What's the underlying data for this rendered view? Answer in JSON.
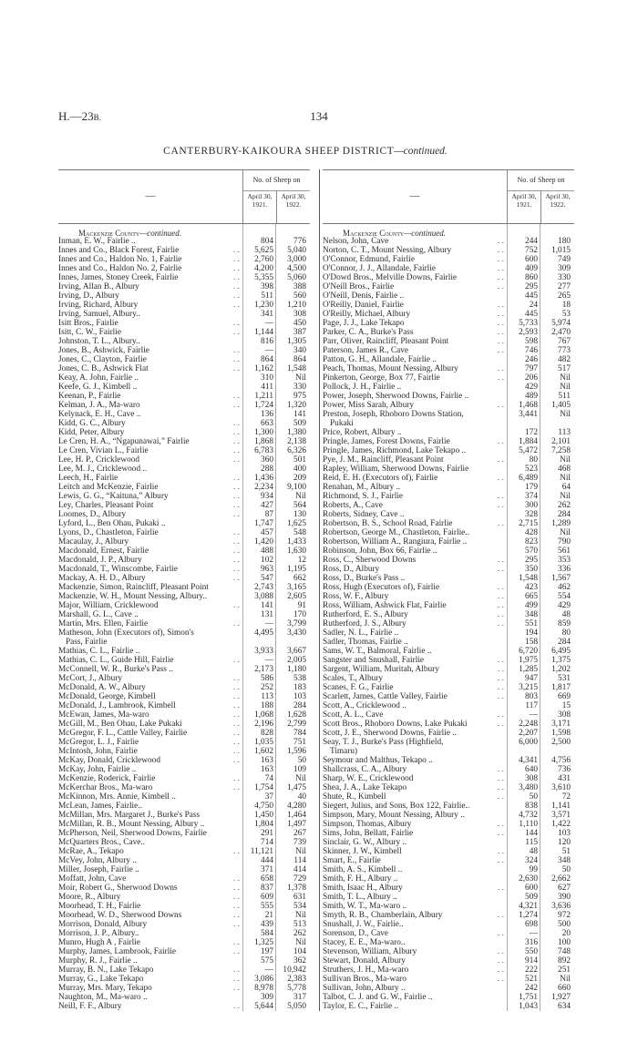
{
  "header": {
    "doc_ref_main": "H.—23",
    "doc_ref_suffix": "B.",
    "page_number": "134"
  },
  "title": {
    "main": "CANTERBURY-KAIKOURA SHEEP DISTRICT",
    "suffix": "—continued."
  },
  "table_header": {
    "dash": "—",
    "group": "No. of Sheep on",
    "col1": "April 30, 1921.",
    "col2": "April 30, 1922."
  },
  "section": {
    "name": "Mackenzie County",
    "suffix": "—continued."
  },
  "left_rows": [
    {
      "name": "Inman, E. W., Fairlie ..",
      "a": "804",
      "b": "776"
    },
    {
      "name": "Innes and Co., Black Forest, Fairlie",
      "a": "5,625",
      "b": "5,040"
    },
    {
      "name": "Innes and Co., Haldon No. 1, Fairlie",
      "a": "2,760",
      "b": "3,000"
    },
    {
      "name": "Innes and Co., Haldon No. 2, Fairlie",
      "a": "4,200",
      "b": "4,500"
    },
    {
      "name": "Innes, James, Stoney Creek, Fairlie",
      "a": "5,355",
      "b": "5,060"
    },
    {
      "name": "Irving, Allan B., Albury",
      "a": "398",
      "b": "388"
    },
    {
      "name": "Irving, D., Albury",
      "a": "511",
      "b": "560"
    },
    {
      "name": "Irving, Richard, Albury",
      "a": "1,230",
      "b": "1,210"
    },
    {
      "name": "Irving, Samuel, Albury..",
      "a": "341",
      "b": "308"
    },
    {
      "name": "Isitt Bros., Fairlie",
      "a": "—",
      "b": "450"
    },
    {
      "name": "Isitt, C. W., Fairlie",
      "a": "1,144",
      "b": "387"
    },
    {
      "name": "Johnston, T. L., Albury..",
      "a": "816",
      "b": "1,305"
    },
    {
      "name": "Jones, B., Ashwick, Fairlie",
      "a": "—",
      "b": "340"
    },
    {
      "name": "Jones, C., Clayton, Fairlie",
      "a": "864",
      "b": "864"
    },
    {
      "name": "Jones, C. B., Ashwick Flat",
      "a": "1,162",
      "b": "1,548"
    },
    {
      "name": "Keay, A. John, Fairlie ..",
      "a": "310",
      "b": "Nil"
    },
    {
      "name": "Keefe, G. J., Kimbell ..",
      "a": "411",
      "b": "330"
    },
    {
      "name": "Keenan, P., Fairlie",
      "a": "1,211",
      "b": "975"
    },
    {
      "name": "Kelman, J. A., Ma-waro",
      "a": "1,724",
      "b": "1,320"
    },
    {
      "name": "Kelynack, E. H., Cave ..",
      "a": "136",
      "b": "141"
    },
    {
      "name": "Kidd, G. C., Albury",
      "a": "663",
      "b": "509"
    },
    {
      "name": "Kidd, Peter, Albury",
      "a": "1,300",
      "b": "1,380"
    },
    {
      "name": "Le Cren, H. A., “Ngapunawai,” Fairlie",
      "a": "1,868",
      "b": "2,138"
    },
    {
      "name": "Le Cren, Vivian L., Fairlie",
      "a": "6,783",
      "b": "6,326"
    },
    {
      "name": "Lee, H. P., Cricklewood",
      "a": "360",
      "b": "501"
    },
    {
      "name": "Lee, M. J., Cricklewood ..",
      "a": "288",
      "b": "400"
    },
    {
      "name": "Leech, H., Fairlie",
      "a": "1,436",
      "b": "209"
    },
    {
      "name": "Leitch and McKenzie, Fairlie",
      "a": "2,234",
      "b": "9,100"
    },
    {
      "name": "Lewis, G. G., “Kaituna,” Albury",
      "a": "934",
      "b": "Nil"
    },
    {
      "name": "Ley, Charles, Pleasant Point",
      "a": "427",
      "b": "564"
    },
    {
      "name": "Loomes, D., Albury",
      "a": "87",
      "b": "130"
    },
    {
      "name": "Lyford, L., Ben Ohau, Pukaki ..",
      "a": "1,747",
      "b": "1,625"
    },
    {
      "name": "Lyons, D., Chastleton, Fairlie",
      "a": "457",
      "b": "548"
    },
    {
      "name": "Macaulay, J., Albury",
      "a": "1,420",
      "b": "1,433"
    },
    {
      "name": "Macdonald, Ernest, Fairlie",
      "a": "488",
      "b": "1,630"
    },
    {
      "name": "Macdonald, J. P., Albury",
      "a": "102",
      "b": "12"
    },
    {
      "name": "Macdonald, T., Winscombe, Fairlie",
      "a": "963",
      "b": "1,195"
    },
    {
      "name": "Mackay, A. H. D., Albury",
      "a": "547",
      "b": "662"
    },
    {
      "name": "Mackenzie, Simon, Raincliff, Pleasant Point",
      "a": "2,743",
      "b": "3,165"
    },
    {
      "name": "Mackenzie, W. H., Mount Nessing, Albury..",
      "a": "3,088",
      "b": "2,605"
    },
    {
      "name": "Major, William, Cricklewood",
      "a": "141",
      "b": "91"
    },
    {
      "name": "Marshall, G. L., Cave ..",
      "a": "131",
      "b": "170"
    },
    {
      "name": "Martin, Mrs. Ellen, Fairlie",
      "a": "—",
      "b": "3,799"
    },
    {
      "name": "Matheson, John (Executors of), Simon's",
      "cont": "Pass, Fairlie",
      "a": "4,495",
      "b": "3,430"
    },
    {
      "name": "Mathias, C. L., Fairlie ..",
      "a": "3,933",
      "b": "3,667"
    },
    {
      "name": "Mathias, C. L., Guide Hill, Fairlie",
      "a": "—",
      "b": "2,005"
    },
    {
      "name": "McConnell, W. R., Burke's Pass ..",
      "a": "2,173",
      "b": "1,180"
    },
    {
      "name": "McCort, J., Albury",
      "a": "586",
      "b": "538"
    },
    {
      "name": "McDonald, A. W., Albury",
      "a": "252",
      "b": "183"
    },
    {
      "name": "McDonald, George, Kimbell",
      "a": "113",
      "b": "103"
    },
    {
      "name": "McDonald, J., Lambrook, Kimbell",
      "a": "188",
      "b": "284"
    },
    {
      "name": "McEwan, James, Ma-waro",
      "a": "1,068",
      "b": "1,628"
    },
    {
      "name": "McGill, M., Ben Ohau, Lake Pukaki",
      "a": "2,196",
      "b": "2,799"
    },
    {
      "name": "McGregor, F. L., Cattle Valley, Fairlie",
      "a": "828",
      "b": "784"
    },
    {
      "name": "McGregor, L. J., Fairlie",
      "a": "1,035",
      "b": "751"
    },
    {
      "name": "McIntosh, John, Fairlie",
      "a": "1,602",
      "b": "1,596"
    },
    {
      "name": "McKay, Donald, Cricklewood",
      "a": "163",
      "b": "50"
    },
    {
      "name": "McKay, John, Fairlie ..",
      "a": "163",
      "b": "109"
    },
    {
      "name": "McKenzie, Roderick, Fairlie",
      "a": "74",
      "b": "Nil"
    },
    {
      "name": "McKerchar Bros., Ma-waro",
      "a": "1,754",
      "b": "1,475"
    },
    {
      "name": "McKinnon, Mrs. Annie, Kimbell ..",
      "a": "37",
      "b": "40"
    },
    {
      "name": "McLean, James, Fairlie..",
      "a": "4,750",
      "b": "4,280"
    },
    {
      "name": "McMillan, Mrs. Margaret J., Burke's Pass",
      "a": "1,450",
      "b": "1,464"
    },
    {
      "name": "McMillan, R. B., Mount Nessing, Albury ..",
      "a": "1,804",
      "b": "1,497"
    },
    {
      "name": "McPherson, Neil, Sherwood Downs, Fairlie",
      "a": "291",
      "b": "267"
    },
    {
      "name": "McQuarters Bros., Cave..",
      "a": "714",
      "b": "739"
    },
    {
      "name": "McRae, A., Tekapo",
      "a": "11,121",
      "b": "Nil"
    },
    {
      "name": "McVey, John, Albury ..",
      "a": "444",
      "b": "114"
    },
    {
      "name": "Miller, Joseph, Fairlie ..",
      "a": "371",
      "b": "414"
    },
    {
      "name": "Moffatt, John, Cave",
      "a": "658",
      "b": "729"
    },
    {
      "name": "Moir, Robert G., Sherwood Downs",
      "a": "837",
      "b": "1,378"
    },
    {
      "name": "Moore, R., Albury",
      "a": "609",
      "b": "631"
    },
    {
      "name": "Moorhead, T. H., Fairlie",
      "a": "555",
      "b": "534"
    },
    {
      "name": "Moorhead, W. D., Sherwood Downs",
      "a": "21",
      "b": "Nil"
    },
    {
      "name": "Morrison, Donald, Albury",
      "a": "439",
      "b": "513"
    },
    {
      "name": "Morrison, J. P., Albury..",
      "a": "584",
      "b": "262"
    },
    {
      "name": "Munro, Hugh A , Fairlie",
      "a": "1,325",
      "b": "Nil"
    },
    {
      "name": "Murphy, James, Lambrook, Fairlie",
      "a": "197",
      "b": "104"
    },
    {
      "name": "Murphy, R. J., Fairlie ..",
      "a": "575",
      "b": "362"
    },
    {
      "name": "Murray, B. N., Lake Tekapo",
      "a": "—",
      "b": "10,942"
    },
    {
      "name": "Murray, G., Lake Tekapo",
      "a": "3,086",
      "b": "2,383"
    },
    {
      "name": "Murray, Mrs. Mary, Tekapo",
      "a": "8,978",
      "b": "5,778"
    },
    {
      "name": "Naughton, M., Ma-waro ..",
      "a": "309",
      "b": "317"
    },
    {
      "name": "Neill, F. F., Albury",
      "a": "5,644",
      "b": "5,050"
    }
  ],
  "right_rows": [
    {
      "name": "Nelson, John, Cave",
      "a": "244",
      "b": "180"
    },
    {
      "name": "Norton, C. T., Mount Nessing, Albury",
      "a": "752",
      "b": "1,015"
    },
    {
      "name": "O'Connor, Edmund, Fairlie",
      "a": "600",
      "b": "749"
    },
    {
      "name": "O'Connor, J. J., Allandale, Fairlie",
      "a": "409",
      "b": "309"
    },
    {
      "name": "O'Dowd Bros., Melville Downs, Fairlie",
      "a": "860",
      "b": "330"
    },
    {
      "name": "O'Neill Bros., Fairlie",
      "a": "295",
      "b": "277"
    },
    {
      "name": "O'Neill, Denis, Fairlie ..",
      "a": "445",
      "b": "265"
    },
    {
      "name": "O'Reilly, Daniel, Fairlie",
      "a": "24",
      "b": "18"
    },
    {
      "name": "O'Reilly, Michael, Albury",
      "a": "445",
      "b": "53"
    },
    {
      "name": "Page, J. J., Lake Tekapo",
      "a": "5,733",
      "b": "5,974"
    },
    {
      "name": "Parker, C. A., Burke's Pass",
      "a": "2,593",
      "b": "2,470"
    },
    {
      "name": "Parr, Oliver, Raincliff, Pleasant Point",
      "a": "598",
      "b": "767"
    },
    {
      "name": "Paterson, James R., Cave",
      "a": "746",
      "b": "773"
    },
    {
      "name": "Patton, G. H., Allandale, Fairlie ..",
      "a": "246",
      "b": "482"
    },
    {
      "name": "Peach, Thomas, Mount Nessing, Albury",
      "a": "797",
      "b": "517"
    },
    {
      "name": "Pinkerton, George, Box 77, Fairlie",
      "a": "206",
      "b": "Nil"
    },
    {
      "name": "Pollock, J. H., Fairlie ..",
      "a": "429",
      "b": "Nil"
    },
    {
      "name": "Power, Joseph, Sherwood Downs, Fairlie ..",
      "a": "489",
      "b": "511"
    },
    {
      "name": "Power, Miss Sarah, Albury",
      "a": "1,468",
      "b": "1,405"
    },
    {
      "name": "Preston, Joseph, Rhoboro Downs Station,",
      "cont": "Pukaki",
      "a": "3,441",
      "b": "Nil"
    },
    {
      "name": "Price, Robert, Albury ..",
      "a": "172",
      "b": "113"
    },
    {
      "name": "Pringle, James, Forest Downs, Fairlie",
      "a": "1,884",
      "b": "2,101"
    },
    {
      "name": "Pringle, James, Richmond, Lake Tekapo ..",
      "a": "5,472",
      "b": "7,258"
    },
    {
      "name": "Pye, J. M., Raincliff, Pleasant Point",
      "a": "80",
      "b": "Nil"
    },
    {
      "name": "Rapley, William, Sherwood Downs, Fairlie",
      "a": "523",
      "b": "468"
    },
    {
      "name": "Reid, E. H. (Executors of), Fairlie",
      "a": "6,489",
      "b": "Nil"
    },
    {
      "name": "Renahan, M., Albury ..",
      "a": "179",
      "b": "64"
    },
    {
      "name": "Richmond, S. J., Fairlie",
      "a": "374",
      "b": "Nil"
    },
    {
      "name": "Roberts, A., Cave",
      "a": "300",
      "b": "262"
    },
    {
      "name": "Roberts, Sidney, Cave ..",
      "a": "328",
      "b": "284"
    },
    {
      "name": "Robertson, B. S., School Road, Fairlie",
      "a": "2,715",
      "b": "1,289"
    },
    {
      "name": "Robertson, George M., Chastleton, Fairlie..",
      "a": "428",
      "b": "Nil"
    },
    {
      "name": "Robertson, William A., Rangiura, Fairlie ..",
      "a": "823",
      "b": "790"
    },
    {
      "name": "Robinson, John, Box 66, Fairlie ..",
      "a": "570",
      "b": "561"
    },
    {
      "name": "Ross, C., Sherwood Downs",
      "a": "295",
      "b": "353"
    },
    {
      "name": "Ross, D., Albury",
      "a": "350",
      "b": "336"
    },
    {
      "name": "Ross, D., Burke's Pass ..",
      "a": "1,548",
      "b": "1,567"
    },
    {
      "name": "Ross, Hugh (Executors of), Fairlie",
      "a": "423",
      "b": "462"
    },
    {
      "name": "Ross, W. F., Albury",
      "a": "665",
      "b": "554"
    },
    {
      "name": "Ross, William, Ashwick Flat, Fairlie",
      "a": "499",
      "b": "429"
    },
    {
      "name": "Rutherford, E. S., Albury",
      "a": "348",
      "b": "48"
    },
    {
      "name": "Rutherford, J. S., Albury",
      "a": "551",
      "b": "859"
    },
    {
      "name": "Sadler, N. L., Fairlie ..",
      "a": "194",
      "b": "80"
    },
    {
      "name": "Sadler, Thomas, Fairlie ..",
      "a": "158",
      "b": "284"
    },
    {
      "name": "Sams, W. T., Balmoral, Fairlie ..",
      "a": "6,720",
      "b": "6,495"
    },
    {
      "name": "Sangster and Snushall, Fairlie",
      "a": "1,975",
      "b": "1,375"
    },
    {
      "name": "Sargent, William, Muritah, Albury",
      "a": "1,285",
      "b": "1,202"
    },
    {
      "name": "Scales, T., Albury",
      "a": "947",
      "b": "531"
    },
    {
      "name": "Scanes, F. G., Fairlie",
      "a": "3,215",
      "b": "1,817"
    },
    {
      "name": "Scarlett, James, Cattle Valley, Fairlie",
      "a": "803",
      "b": "669"
    },
    {
      "name": "Scott, A., Cricklewood ..",
      "a": "117",
      "b": "15"
    },
    {
      "name": "Scott, A. L., Cave",
      "a": "—",
      "b": "308"
    },
    {
      "name": "Scott Bros., Rhoboro Downs, Lake Pukaki",
      "a": "2,248",
      "b": "3,171"
    },
    {
      "name": "Scott, J. E., Sherwood Downs, Fairlie ..",
      "a": "2,207",
      "b": "1,598"
    },
    {
      "name": "Seay, T. J., Burke's Pass (Highfield,",
      "cont": "Timaru)",
      "a": "6,000",
      "b": "2,500"
    },
    {
      "name": "Seymour and Malthus, Tekapo ..",
      "a": "4,341",
      "b": "4,756"
    },
    {
      "name": "Shallcrass, C. A., Albury",
      "a": "640",
      "b": "736"
    },
    {
      "name": "Sharp, W. E., Cricklewood",
      "a": "308",
      "b": "431"
    },
    {
      "name": "Shea, J. A., Lake Tekapo",
      "a": "3,480",
      "b": "3,610"
    },
    {
      "name": "Shute, R., Kimbell",
      "a": "50",
      "b": "72"
    },
    {
      "name": "Siegert, Julius, and Sons, Box 122, Fairlie..",
      "a": "838",
      "b": "1,141"
    },
    {
      "name": "Simpson, Mary, Mount Nessing, Albury ..",
      "a": "4,732",
      "b": "3,571"
    },
    {
      "name": "Simpson, Thomas, Albury",
      "a": "1,110",
      "b": "1,422"
    },
    {
      "name": "Sims, John, Bellatt, Fairlie",
      "a": "144",
      "b": "103"
    },
    {
      "name": "Sinclair, G. W., Albury ..",
      "a": "115",
      "b": "120"
    },
    {
      "name": "Skinner, J. W., Kimbell",
      "a": "48",
      "b": "51"
    },
    {
      "name": "Smart, E., Fairlie",
      "a": "324",
      "b": "348"
    },
    {
      "name": "Smith, A. S., Kimbell ..",
      "a": "99",
      "b": "50"
    },
    {
      "name": "Smith, F. H., Albury ..",
      "a": "2,630",
      "b": "2,662"
    },
    {
      "name": "Smith, Isaac H., Albury",
      "a": "600",
      "b": "627"
    },
    {
      "name": "Smith, T. L., Albury ..",
      "a": "509",
      "b": "390"
    },
    {
      "name": "Smith, W. T., Ma-waro ..",
      "a": "4,321",
      "b": "3,636"
    },
    {
      "name": "Smyth, R. B., Chamberlain, Albury",
      "a": "1,274",
      "b": "972"
    },
    {
      "name": "Snushall, J. W., Fairlie..",
      "a": "698",
      "b": "500"
    },
    {
      "name": "Sorenson, D., Cave",
      "a": "—",
      "b": "20"
    },
    {
      "name": "Stacey, E. E., Ma-waro..",
      "a": "316",
      "b": "100"
    },
    {
      "name": "Stevenson, William, Albury",
      "a": "550",
      "b": "748"
    },
    {
      "name": "Stewart, Donald, Albury",
      "a": "914",
      "b": "892"
    },
    {
      "name": "Struthers, J. H., Ma-waro",
      "a": "222",
      "b": "251"
    },
    {
      "name": "Sullivan Bros., Ma-waro",
      "a": "521",
      "b": "Nil"
    },
    {
      "name": "Sullivan, John, Albury ..",
      "a": "242",
      "b": "660"
    },
    {
      "name": "Talbot, C. J. and G. W., Fairlie ..",
      "a": "1,751",
      "b": "1,927"
    },
    {
      "name": "Taylor, E. C., Fairlie ..",
      "a": "1,043",
      "b": "634"
    }
  ]
}
